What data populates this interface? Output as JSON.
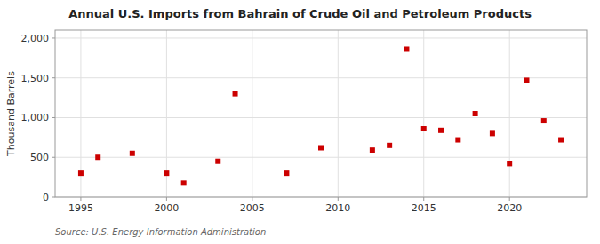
{
  "chart_data": {
    "type": "scatter",
    "title": "Annual U.S. Imports from Bahrain of Crude Oil and Petroleum Products",
    "y_label": "Thousand Barrels",
    "source": "Source: U.S. Energy Information Administration",
    "x": [
      1995,
      1996,
      1998,
      2000,
      2001,
      2003,
      2004,
      2007,
      2009,
      2012,
      2013,
      2014,
      2015,
      2016,
      2017,
      2018,
      2019,
      2020,
      2021,
      2022,
      2023
    ],
    "values": [
      300,
      500,
      550,
      300,
      175,
      450,
      1300,
      300,
      620,
      590,
      650,
      1860,
      860,
      840,
      720,
      1050,
      800,
      420,
      1470,
      960,
      720
    ],
    "color": "#cc0000",
    "marker": "square",
    "xlim": [
      1993.5,
      2024.5
    ],
    "ylim": [
      0,
      2100
    ],
    "xticks": [
      1995,
      2000,
      2005,
      2010,
      2015,
      2020
    ],
    "yticks": [
      0,
      500,
      {
        "value": 1000,
        "label": "1,000"
      },
      {
        "value": 1500,
        "label": "1,500"
      },
      {
        "value": 2000,
        "label": "2,000"
      }
    ],
    "grid": true
  }
}
